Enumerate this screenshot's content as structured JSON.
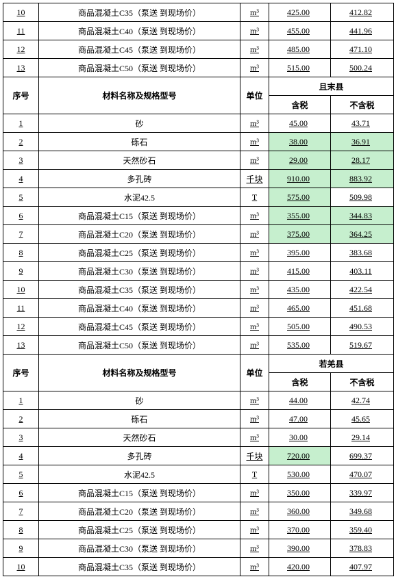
{
  "headers": {
    "seq": "序号",
    "name": "材料名称及规格型号",
    "unit": "单位",
    "tax": "含税",
    "notax": "不含税"
  },
  "regions": {
    "qiemo": "且末县",
    "ruoqiang": "若羌县"
  },
  "top_rows": [
    {
      "seq": "10",
      "name": "商品混凝土C35（泵送 到现场价）",
      "unit": "m³",
      "p1": "425.00",
      "p2": "412.82"
    },
    {
      "seq": "11",
      "name": "商品混凝土C40（泵送 到现场价）",
      "unit": "m³",
      "p1": "455.00",
      "p2": "441.96"
    },
    {
      "seq": "12",
      "name": "商品混凝土C45（泵送 到现场价）",
      "unit": "m³",
      "p1": "485.00",
      "p2": "471.10"
    },
    {
      "seq": "13",
      "name": "商品混凝土C50（泵送 到现场价）",
      "unit": "m³",
      "p1": "515.00",
      "p2": "500.24"
    }
  ],
  "qiemo_rows": [
    {
      "seq": "1",
      "name": "砂",
      "unit": "m³",
      "p1": "45.00",
      "p2": "43.71",
      "hl1": false,
      "hl2": false
    },
    {
      "seq": "2",
      "name": "砾石",
      "unit": "m³",
      "p1": "38.00",
      "p2": "36.91",
      "hl1": true,
      "hl2": true
    },
    {
      "seq": "3",
      "name": "天然砂石",
      "unit": "m³",
      "p1": "29.00",
      "p2": "28.17",
      "hl1": true,
      "hl2": true
    },
    {
      "seq": "4",
      "name": "多孔砖",
      "unit": "千块",
      "p1": "910.00",
      "p2": "883.92",
      "hl1": true,
      "hl2": true
    },
    {
      "seq": "5",
      "name": "水泥42.5",
      "unit": "T",
      "p1": "575.00",
      "p2": "509.98",
      "hl1": true,
      "hl2": false
    },
    {
      "seq": "6",
      "name": "商品混凝土C15（泵送 到现场价）",
      "unit": "m³",
      "p1": "355.00",
      "p2": "344.83",
      "hl1": true,
      "hl2": true
    },
    {
      "seq": "7",
      "name": "商品混凝土C20（泵送 到现场价）",
      "unit": "m³",
      "p1": "375.00",
      "p2": "364.25",
      "hl1": true,
      "hl2": true
    },
    {
      "seq": "8",
      "name": "商品混凝土C25（泵送 到现场价）",
      "unit": "m³",
      "p1": "395.00",
      "p2": "383.68",
      "hl1": false,
      "hl2": false
    },
    {
      "seq": "9",
      "name": "商品混凝土C30（泵送 到现场价）",
      "unit": "m³",
      "p1": "415.00",
      "p2": "403.11",
      "hl1": false,
      "hl2": false
    },
    {
      "seq": "10",
      "name": "商品混凝土C35（泵送 到现场价）",
      "unit": "m³",
      "p1": "435.00",
      "p2": "422.54",
      "hl1": false,
      "hl2": false
    },
    {
      "seq": "11",
      "name": "商品混凝土C40（泵送 到现场价）",
      "unit": "m³",
      "p1": "465.00",
      "p2": "451.68",
      "hl1": false,
      "hl2": false
    },
    {
      "seq": "12",
      "name": "商品混凝土C45（泵送 到现场价）",
      "unit": "m³",
      "p1": "505.00",
      "p2": "490.53",
      "hl1": false,
      "hl2": false
    },
    {
      "seq": "13",
      "name": "商品混凝土C50（泵送 到现场价）",
      "unit": "m³",
      "p1": "535.00",
      "p2": "519.67",
      "hl1": false,
      "hl2": false
    }
  ],
  "ruoqiang_rows": [
    {
      "seq": "1",
      "name": "砂",
      "unit": "m³",
      "p1": "44.00",
      "p2": "42.74",
      "hl1": false,
      "hl2": false
    },
    {
      "seq": "2",
      "name": "砾石",
      "unit": "m³",
      "p1": "47.00",
      "p2": "45.65",
      "hl1": false,
      "hl2": false
    },
    {
      "seq": "3",
      "name": "天然砂石",
      "unit": "m³",
      "p1": "30.00",
      "p2": "29.14",
      "hl1": false,
      "hl2": false
    },
    {
      "seq": "4",
      "name": "多孔砖",
      "unit": "千块",
      "p1": "720.00",
      "p2": "699.37",
      "hl1": true,
      "hl2": false
    },
    {
      "seq": "5",
      "name": "水泥42.5",
      "unit": "T",
      "p1": "530.00",
      "p2": "470.07",
      "hl1": false,
      "hl2": false
    },
    {
      "seq": "6",
      "name": "商品混凝土C15（泵送 到现场价）",
      "unit": "m³",
      "p1": "350.00",
      "p2": "339.97",
      "hl1": false,
      "hl2": false
    },
    {
      "seq": "7",
      "name": "商品混凝土C20（泵送 到现场价）",
      "unit": "m³",
      "p1": "360.00",
      "p2": "349.68",
      "hl1": false,
      "hl2": false
    },
    {
      "seq": "8",
      "name": "商品混凝土C25（泵送 到现场价）",
      "unit": "m³",
      "p1": "370.00",
      "p2": "359.40",
      "hl1": false,
      "hl2": false
    },
    {
      "seq": "9",
      "name": "商品混凝土C30（泵送 到现场价）",
      "unit": "m³",
      "p1": "390.00",
      "p2": "378.83",
      "hl1": false,
      "hl2": false
    },
    {
      "seq": "10",
      "name": "商品混凝土C35（泵送 到现场价）",
      "unit": "m³",
      "p1": "420.00",
      "p2": "407.97",
      "hl1": false,
      "hl2": false
    }
  ]
}
